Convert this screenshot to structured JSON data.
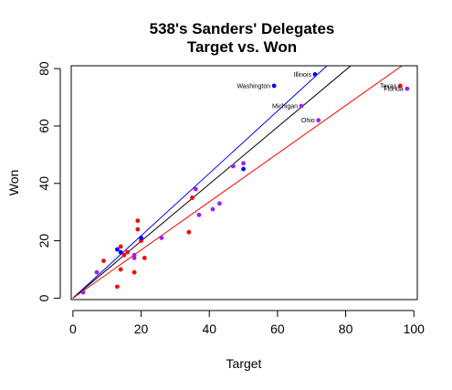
{
  "chart_data": {
    "type": "scatter",
    "title": "538's Sanders' Delegates",
    "subtitle": "Target vs. Won",
    "xlabel": "Target",
    "ylabel": "Won",
    "xlim": [
      -0.5,
      101
    ],
    "ylim": [
      -0.5,
      81
    ],
    "x_ticks": [
      0,
      20,
      40,
      60,
      80,
      100
    ],
    "y_ticks": [
      0,
      20,
      40,
      60,
      80
    ],
    "grid": false,
    "colors": {
      "red": "#ff0000",
      "blue": "#0000ff",
      "purple": "#a020f0",
      "black": "#000000"
    },
    "lines": [
      {
        "color": "#0000ff",
        "x": [
          0,
          74.5
        ],
        "y": [
          0,
          81
        ]
      },
      {
        "color": "#000000",
        "x": [
          0,
          81.5
        ],
        "y": [
          0,
          81
        ]
      },
      {
        "color": "#ff0000",
        "x": [
          0,
          96.5
        ],
        "y": [
          0,
          81
        ]
      }
    ],
    "points": [
      {
        "x": 3,
        "y": 2,
        "color": "#a020f0"
      },
      {
        "x": 7,
        "y": 9,
        "color": "#a020f0"
      },
      {
        "x": 9,
        "y": 13,
        "color": "#ff0000"
      },
      {
        "x": 13,
        "y": 4,
        "color": "#ff0000"
      },
      {
        "x": 13,
        "y": 17,
        "color": "#0000ff"
      },
      {
        "x": 14,
        "y": 10,
        "color": "#ff0000"
      },
      {
        "x": 14,
        "y": 18,
        "color": "#ff0000"
      },
      {
        "x": 14,
        "y": 16,
        "color": "#0000ff"
      },
      {
        "x": 15,
        "y": 15,
        "color": "#ff0000"
      },
      {
        "x": 16,
        "y": 16,
        "color": "#ff0000"
      },
      {
        "x": 18,
        "y": 9,
        "color": "#ff0000"
      },
      {
        "x": 18,
        "y": 14,
        "color": "#a020f0"
      },
      {
        "x": 18,
        "y": 15,
        "color": "#a020f0"
      },
      {
        "x": 19,
        "y": 24,
        "color": "#ff0000"
      },
      {
        "x": 19,
        "y": 27,
        "color": "#ff0000"
      },
      {
        "x": 20,
        "y": 20,
        "color": "#ff0000"
      },
      {
        "x": 20,
        "y": 21,
        "color": "#0000ff"
      },
      {
        "x": 21,
        "y": 14,
        "color": "#ff0000"
      },
      {
        "x": 26,
        "y": 21,
        "color": "#a020f0"
      },
      {
        "x": 34,
        "y": 23,
        "color": "#ff0000"
      },
      {
        "x": 35,
        "y": 35,
        "color": "#ff0000"
      },
      {
        "x": 36,
        "y": 38,
        "color": "#a020f0"
      },
      {
        "x": 37,
        "y": 29,
        "color": "#a020f0"
      },
      {
        "x": 41,
        "y": 31,
        "color": "#a020f0"
      },
      {
        "x": 43,
        "y": 33,
        "color": "#a020f0"
      },
      {
        "x": 47,
        "y": 46,
        "color": "#a020f0"
      },
      {
        "x": 50,
        "y": 45,
        "color": "#0000ff"
      },
      {
        "x": 50,
        "y": 47,
        "color": "#a020f0"
      },
      {
        "x": 59,
        "y": 74,
        "color": "#0000ff",
        "label": "Washington"
      },
      {
        "x": 67,
        "y": 67,
        "color": "#a020f0",
        "label": "Michigan"
      },
      {
        "x": 71,
        "y": 78,
        "color": "#0000ff",
        "label": "Illinois"
      },
      {
        "x": 72,
        "y": 62,
        "color": "#a020f0",
        "label": "Ohio"
      },
      {
        "x": 96,
        "y": 74,
        "color": "#ff0000",
        "label": "Texas"
      },
      {
        "x": 98,
        "y": 73,
        "color": "#a020f0",
        "label": "Florida"
      }
    ]
  }
}
